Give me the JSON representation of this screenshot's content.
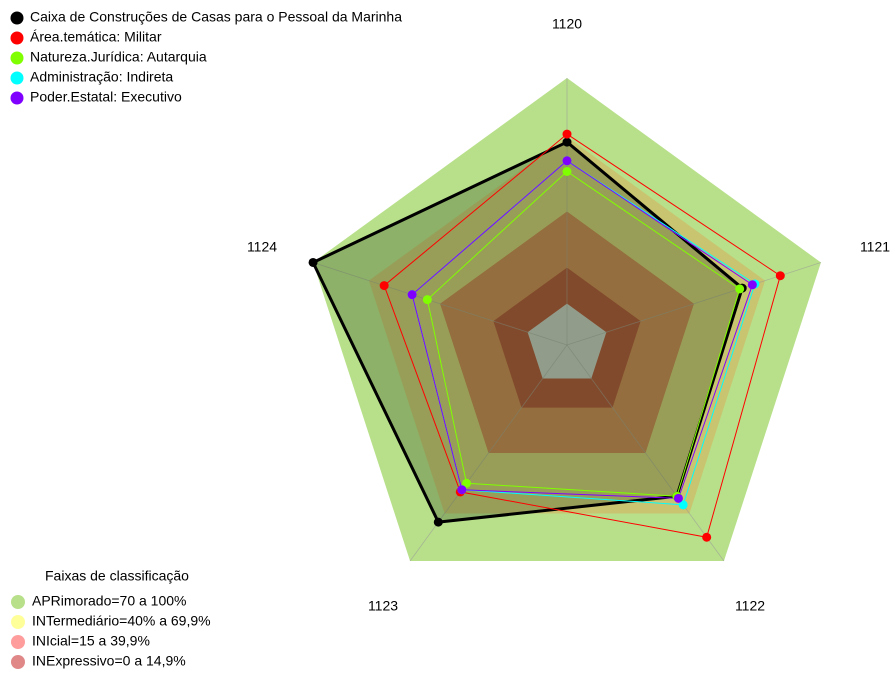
{
  "chart_data": {
    "type": "radar",
    "categories": [
      "1120",
      "1121",
      "1122",
      "1123",
      "1124"
    ],
    "ylim": [
      0,
      100
    ],
    "series": [
      {
        "name": "Caixa de Construções de Casas para o Pessoal da Marinha",
        "color": "#000000",
        "values": [
          76,
          69,
          70,
          82,
          100
        ]
      },
      {
        "name": "Área.temática: Militar",
        "color": "#ff0000",
        "values": [
          79,
          84,
          89,
          68,
          72
        ]
      },
      {
        "name": "Natureza.Jurídica: Autarquia",
        "color": "#80ff00",
        "values": [
          65,
          68,
          70,
          64,
          55
        ]
      },
      {
        "name": "Administração: Indireta",
        "color": "#00ffff",
        "values": [
          69,
          74,
          74,
          67,
          61
        ]
      },
      {
        "name": "Poder.Estatal: Executivo",
        "color": "#8000ff",
        "values": [
          69,
          73,
          71,
          67,
          61
        ]
      }
    ],
    "band_legend": {
      "title": "Faixas de classificação",
      "items": [
        {
          "label": "APRimorado=70 a 100%",
          "color": "#b8e08a"
        },
        {
          "label": "INTermediário=40% a 69,9%",
          "color": "#ffff99"
        },
        {
          "label": "INIcial=15 a 39,9%",
          "color": "#ff9c9c"
        },
        {
          "label": "INExpressivo=0 a 14,9%",
          "color": "#e08888"
        }
      ]
    }
  }
}
